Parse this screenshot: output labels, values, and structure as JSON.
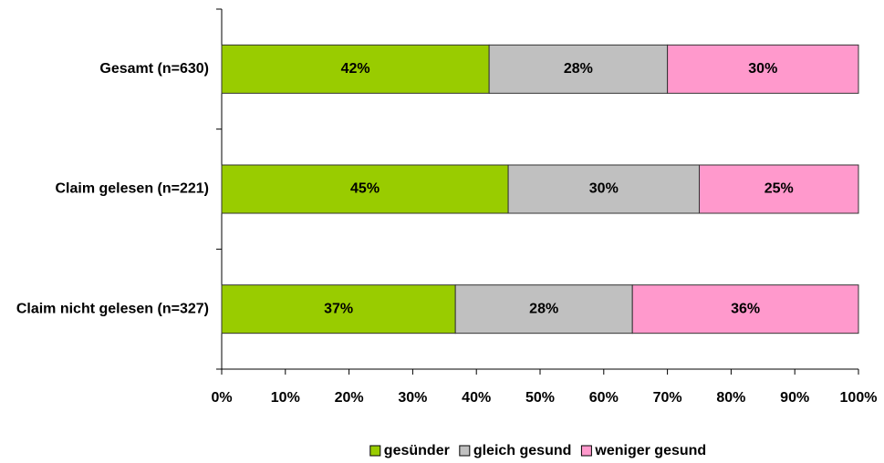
{
  "chart_data": {
    "type": "stacked-barh",
    "categories": [
      "Gesamt (n=630)",
      "Claim gelesen (n=221)",
      "Claim nicht gelesen (n=327)"
    ],
    "series": [
      {
        "name": "gesünder",
        "color": "#99cc00",
        "values": [
          42,
          45,
          36.7
        ],
        "value_labels": [
          "42%",
          "45%",
          "37%"
        ]
      },
      {
        "name": "gleich gesund",
        "color": "#c0c0c0",
        "values": [
          28,
          30,
          27.8
        ],
        "value_labels": [
          "28%",
          "30%",
          "28%"
        ]
      },
      {
        "name": "weniger gesund",
        "color": "#ff99cc",
        "values": [
          30,
          25,
          35.5
        ],
        "value_labels": [
          "30%",
          "25%",
          "36%"
        ]
      }
    ],
    "xlim": [
      0,
      100
    ],
    "xticks": [
      {
        "value": 0,
        "label": "0%"
      },
      {
        "value": 10,
        "label": "10%"
      },
      {
        "value": 20,
        "label": "20%"
      },
      {
        "value": 30,
        "label": "30%"
      },
      {
        "value": 40,
        "label": "40%"
      },
      {
        "value": 50,
        "label": "50%"
      },
      {
        "value": 60,
        "label": "60%"
      },
      {
        "value": 70,
        "label": "70%"
      },
      {
        "value": 80,
        "label": "80%"
      },
      {
        "value": 90,
        "label": "90%"
      },
      {
        "value": 100,
        "label": "100%"
      }
    ],
    "legend": "bottom"
  }
}
